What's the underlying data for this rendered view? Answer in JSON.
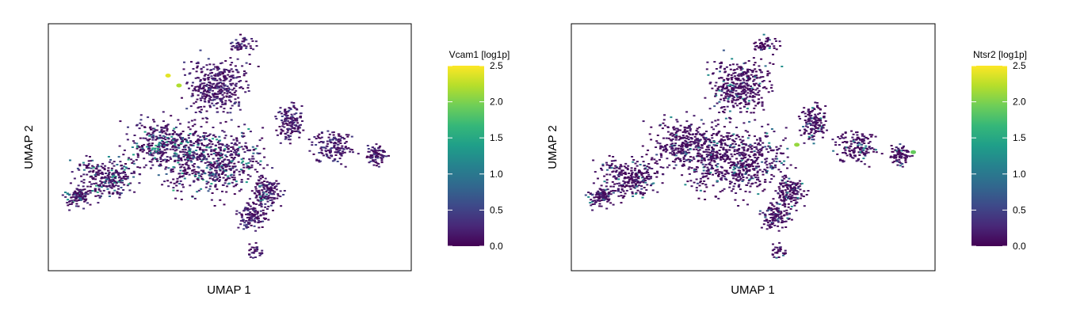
{
  "chart_data": [
    {
      "type": "scatter",
      "panel": "left",
      "xlabel": "UMAP 1",
      "ylabel": "UMAP 2",
      "colorbar": {
        "title": "Vcam1 [log1p]",
        "range": [
          0.0,
          2.5
        ],
        "ticks": [
          "0.0",
          "0.5",
          "1.0",
          "1.5",
          "2.0",
          "2.5"
        ],
        "colormap": "viridis"
      },
      "grid": false,
      "axis_ticks": false,
      "highlights": [
        {
          "x": 0.33,
          "y": 0.79,
          "value": 2.4
        },
        {
          "x": 0.36,
          "y": 0.75,
          "value": 2.2
        }
      ]
    },
    {
      "type": "scatter",
      "panel": "right",
      "xlabel": "UMAP 1",
      "ylabel": "UMAP 2",
      "colorbar": {
        "title": "Ntsr2 [log1p]",
        "range": [
          0.0,
          2.5
        ],
        "ticks": [
          "0.0",
          "0.5",
          "1.0",
          "1.5",
          "2.0",
          "2.5"
        ],
        "colormap": "viridis"
      },
      "grid": false,
      "axis_ticks": false,
      "highlights": [
        {
          "x": 0.62,
          "y": 0.51,
          "value": 2.1
        },
        {
          "x": 0.94,
          "y": 0.48,
          "value": 1.9
        }
      ]
    }
  ],
  "viridis": [
    "#440154",
    "#482878",
    "#3e4989",
    "#31688e",
    "#26828e",
    "#1f9e89",
    "#35b779",
    "#6ece58",
    "#b5de2b",
    "#fde725"
  ]
}
